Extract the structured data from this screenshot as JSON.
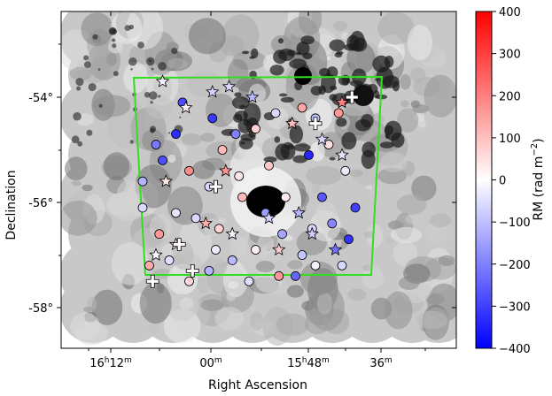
{
  "chart_data": {
    "type": "scatter",
    "title": "",
    "xlabel": "Right Ascension",
    "ylabel": "Declination",
    "x_ticks": [
      {
        "h": "16",
        "m": "12"
      },
      {
        "h": "",
        "m": "00"
      },
      {
        "h": "15",
        "m": "48"
      },
      {
        "h": "",
        "m": "36"
      }
    ],
    "y_ticks": [
      "-54°",
      "-56°",
      "-58°"
    ],
    "xlim_ra": [
      "16h21m",
      "15h27m"
    ],
    "ylim_dec": [
      -58.8,
      -52.1
    ],
    "colorbar": {
      "label": "RM (rad m",
      "label_sup": "−2",
      "label_end": ")",
      "ticks": [
        "400",
        "300",
        "200",
        "100",
        "0",
        "−100",
        "−200",
        "−300",
        "−400"
      ],
      "range": [
        -400,
        400
      ],
      "colormap": "bwr",
      "colors": {
        "low": "#0000ff",
        "mid": "#ffffff",
        "high": "#ff0000"
      }
    },
    "background_image": "grayscale polarized intensity map",
    "region_box_color": "#33dd22",
    "marker_types": [
      "circle",
      "star",
      "cross"
    ],
    "grid": false,
    "series": [
      {
        "marker": "circle",
        "points": [
          [
            16.04,
            -56.3,
            -60
          ],
          [
            15.96,
            -55.0,
            110
          ],
          [
            15.91,
            -55.5,
            40
          ],
          [
            15.83,
            -56.2,
            -150
          ],
          [
            15.66,
            -55.9,
            -260
          ],
          [
            15.72,
            -57.0,
            -90
          ],
          [
            15.78,
            -56.6,
            -140
          ],
          [
            15.86,
            -56.9,
            20
          ],
          [
            15.97,
            -56.5,
            70
          ],
          [
            16.1,
            -56.2,
            -40
          ],
          [
            16.14,
            -55.2,
            -280
          ],
          [
            16.1,
            -54.7,
            -330
          ],
          [
            16.06,
            -55.4,
            180
          ],
          [
            16.0,
            -55.7,
            -60
          ],
          [
            15.98,
            -56.9,
            -30
          ],
          [
            15.93,
            -57.1,
            -110
          ],
          [
            15.79,
            -57.4,
            160
          ],
          [
            15.6,
            -57.2,
            -60
          ],
          [
            15.63,
            -56.4,
            -190
          ],
          [
            15.59,
            -55.4,
            -30
          ],
          [
            15.68,
            -54.4,
            -100
          ],
          [
            15.72,
            -54.2,
            140
          ],
          [
            15.8,
            -54.3,
            -60
          ],
          [
            15.86,
            -54.6,
            70
          ],
          [
            15.7,
            -55.1,
            -340
          ],
          [
            15.64,
            -54.9,
            50
          ],
          [
            16.18,
            -57.2,
            130
          ],
          [
            16.15,
            -56.6,
            160
          ],
          [
            16.12,
            -57.1,
            -50
          ],
          [
            16.06,
            -57.5,
            60
          ],
          [
            16.0,
            -57.3,
            -120
          ],
          [
            15.88,
            -57.5,
            -50
          ],
          [
            15.74,
            -57.4,
            -240
          ],
          [
            15.68,
            -57.2,
            -20
          ],
          [
            15.9,
            -55.9,
            110
          ],
          [
            16.2,
            -56.1,
            -60
          ],
          [
            16.2,
            -55.6,
            -120
          ],
          [
            16.16,
            -54.9,
            -210
          ],
          [
            16.08,
            -54.1,
            -280
          ],
          [
            15.99,
            -54.4,
            -310
          ],
          [
            15.92,
            -54.7,
            -200
          ],
          [
            15.82,
            -55.3,
            90
          ],
          [
            15.77,
            -55.9,
            30
          ],
          [
            15.69,
            -56.5,
            -60
          ],
          [
            15.58,
            -56.7,
            -320
          ],
          [
            15.56,
            -56.1,
            -300
          ],
          [
            15.61,
            -54.3,
            160
          ]
        ]
      },
      {
        "marker": "star",
        "points": [
          [
            16.14,
            -53.7,
            -20
          ],
          [
            16.07,
            -54.2,
            20
          ],
          [
            15.99,
            -53.9,
            -70
          ],
          [
            15.94,
            -53.8,
            -60
          ],
          [
            15.87,
            -54.0,
            -110
          ],
          [
            15.75,
            -54.5,
            110
          ],
          [
            15.66,
            -54.8,
            -60
          ],
          [
            15.6,
            -54.1,
            200
          ],
          [
            16.13,
            -55.6,
            40
          ],
          [
            16.01,
            -56.4,
            130
          ],
          [
            15.93,
            -56.6,
            -20
          ],
          [
            15.82,
            -56.3,
            -70
          ],
          [
            15.73,
            -56.2,
            -120
          ],
          [
            15.62,
            -56.9,
            -220
          ],
          [
            16.1,
            -56.8,
            60
          ],
          [
            16.16,
            -57.0,
            -10
          ],
          [
            15.79,
            -56.9,
            80
          ],
          [
            15.69,
            -56.6,
            -80
          ],
          [
            15.6,
            -55.1,
            -40
          ],
          [
            15.95,
            -55.4,
            170
          ]
        ]
      },
      {
        "marker": "cross",
        "points": [
          [
            16.05,
            -57.3,
            0
          ],
          [
            16.09,
            -56.8,
            0
          ],
          [
            15.98,
            -55.7,
            0
          ],
          [
            15.68,
            -54.5,
            0
          ],
          [
            15.57,
            -54.0,
            0
          ],
          [
            16.17,
            -57.5,
            0
          ]
        ]
      }
    ]
  }
}
